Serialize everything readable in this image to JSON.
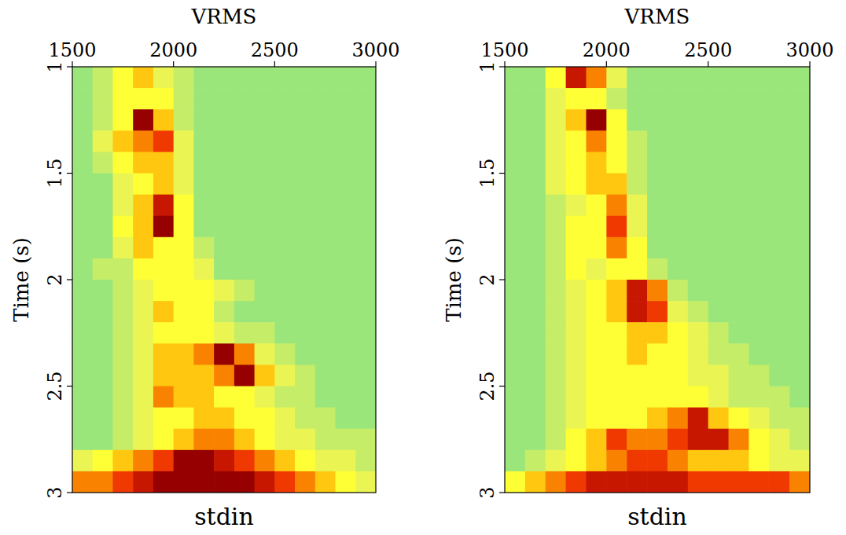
{
  "chart_data": [
    {
      "type": "heatmap",
      "title": "stdin",
      "x_label": "VRMS",
      "y_label": "Time (s)",
      "xlim": [
        1500,
        3000
      ],
      "ylim": [
        1,
        3
      ],
      "xticks": [
        1500,
        2000,
        2500,
        3000
      ],
      "yticks": [
        1,
        1.5,
        2,
        2.5,
        3
      ],
      "zlim": [
        0,
        9
      ],
      "x": [
        1550,
        1650,
        1750,
        1850,
        1950,
        2050,
        2150,
        2250,
        2350,
        2450,
        2550,
        2650,
        2750,
        2850,
        2950
      ],
      "y": [
        1.05,
        1.15,
        1.25,
        1.35,
        1.45,
        1.55,
        1.65,
        1.75,
        1.85,
        1.95,
        2.05,
        2.15,
        2.25,
        2.35,
        2.45,
        2.55,
        2.65,
        2.75,
        2.85,
        2.95
      ],
      "cells": [
        [
          1,
          2,
          4,
          5,
          3,
          2,
          1,
          1,
          1,
          1,
          1,
          1,
          1,
          1,
          1
        ],
        [
          1,
          2,
          4,
          4,
          4,
          2,
          1,
          1,
          1,
          1,
          1,
          1,
          1,
          1,
          1
        ],
        [
          1,
          2,
          4,
          9,
          5,
          2,
          1,
          1,
          1,
          1,
          1,
          1,
          1,
          1,
          1
        ],
        [
          1,
          3,
          5,
          6,
          7,
          3,
          1,
          1,
          1,
          1,
          1,
          1,
          1,
          1,
          1
        ],
        [
          1,
          2,
          4,
          5,
          5,
          3,
          1,
          1,
          1,
          1,
          1,
          1,
          1,
          1,
          1
        ],
        [
          1,
          1,
          3,
          4,
          5,
          3,
          1,
          1,
          1,
          1,
          1,
          1,
          1,
          1,
          1
        ],
        [
          1,
          1,
          3,
          5,
          8,
          4,
          1,
          1,
          1,
          1,
          1,
          1,
          1,
          1,
          1
        ],
        [
          1,
          1,
          4,
          5,
          9,
          4,
          1,
          1,
          1,
          1,
          1,
          1,
          1,
          1,
          1
        ],
        [
          1,
          1,
          3,
          5,
          4,
          4,
          2,
          1,
          1,
          1,
          1,
          1,
          1,
          1,
          1
        ],
        [
          1,
          2,
          2,
          4,
          4,
          4,
          3,
          1,
          1,
          1,
          1,
          1,
          1,
          1,
          1
        ],
        [
          1,
          1,
          2,
          3,
          4,
          4,
          4,
          3,
          2,
          1,
          1,
          1,
          1,
          1,
          1
        ],
        [
          1,
          1,
          2,
          3,
          5,
          4,
          4,
          2,
          1,
          1,
          1,
          1,
          1,
          1,
          1
        ],
        [
          1,
          1,
          2,
          3,
          4,
          4,
          4,
          3,
          2,
          2,
          1,
          1,
          1,
          1,
          1
        ],
        [
          1,
          1,
          2,
          3,
          5,
          5,
          6,
          9,
          6,
          3,
          2,
          1,
          1,
          1,
          1
        ],
        [
          1,
          1,
          2,
          3,
          5,
          5,
          5,
          6,
          9,
          5,
          3,
          2,
          1,
          1,
          1
        ],
        [
          1,
          1,
          2,
          3,
          6,
          5,
          5,
          4,
          4,
          3,
          2,
          2,
          1,
          1,
          1
        ],
        [
          1,
          1,
          2,
          3,
          4,
          4,
          5,
          5,
          4,
          4,
          3,
          2,
          2,
          1,
          1
        ],
        [
          1,
          1,
          2,
          3,
          4,
          5,
          6,
          6,
          5,
          4,
          3,
          3,
          2,
          2,
          2
        ],
        [
          3,
          4,
          5,
          6,
          7,
          9,
          9,
          8,
          7,
          6,
          5,
          4,
          3,
          3,
          2
        ],
        [
          6,
          6,
          7,
          8,
          9,
          9,
          9,
          9,
          9,
          8,
          7,
          6,
          5,
          4,
          3
        ]
      ]
    },
    {
      "type": "heatmap",
      "title": "stdin",
      "x_label": "VRMS",
      "y_label": "Time (s)",
      "xlim": [
        1500,
        3000
      ],
      "ylim": [
        1,
        3
      ],
      "xticks": [
        1500,
        2000,
        2500,
        3000
      ],
      "yticks": [
        1,
        1.5,
        2,
        2.5,
        3
      ],
      "zlim": [
        0,
        9
      ],
      "x": [
        1550,
        1650,
        1750,
        1850,
        1950,
        2050,
        2150,
        2250,
        2350,
        2450,
        2550,
        2650,
        2750,
        2850,
        2950
      ],
      "y": [
        1.05,
        1.15,
        1.25,
        1.35,
        1.45,
        1.55,
        1.65,
        1.75,
        1.85,
        1.95,
        2.05,
        2.15,
        2.25,
        2.35,
        2.45,
        2.55,
        2.65,
        2.75,
        2.85,
        2.95
      ],
      "cells": [
        [
          1,
          1,
          4,
          8,
          6,
          3,
          1,
          1,
          1,
          1,
          1,
          1,
          1,
          1,
          1
        ],
        [
          1,
          1,
          3,
          4,
          4,
          2,
          1,
          1,
          1,
          1,
          1,
          1,
          1,
          1,
          1
        ],
        [
          1,
          1,
          3,
          5,
          9,
          4,
          1,
          1,
          1,
          1,
          1,
          1,
          1,
          1,
          1
        ],
        [
          1,
          1,
          3,
          4,
          6,
          4,
          2,
          1,
          1,
          1,
          1,
          1,
          1,
          1,
          1
        ],
        [
          1,
          1,
          3,
          4,
          5,
          4,
          2,
          1,
          1,
          1,
          1,
          1,
          1,
          1,
          1
        ],
        [
          1,
          1,
          3,
          4,
          5,
          5,
          2,
          1,
          1,
          1,
          1,
          1,
          1,
          1,
          1
        ],
        [
          1,
          1,
          2,
          3,
          4,
          6,
          3,
          1,
          1,
          1,
          1,
          1,
          1,
          1,
          1
        ],
        [
          1,
          1,
          2,
          4,
          4,
          7,
          3,
          1,
          1,
          1,
          1,
          1,
          1,
          1,
          1
        ],
        [
          1,
          1,
          2,
          4,
          4,
          6,
          4,
          1,
          1,
          1,
          1,
          1,
          1,
          1,
          1
        ],
        [
          1,
          1,
          2,
          4,
          3,
          4,
          4,
          2,
          1,
          1,
          1,
          1,
          1,
          1,
          1
        ],
        [
          1,
          1,
          2,
          3,
          4,
          5,
          8,
          6,
          2,
          1,
          1,
          1,
          1,
          1,
          1
        ],
        [
          1,
          1,
          2,
          3,
          4,
          5,
          8,
          7,
          3,
          2,
          1,
          1,
          1,
          1,
          1
        ],
        [
          1,
          1,
          2,
          3,
          4,
          4,
          5,
          5,
          4,
          3,
          2,
          1,
          1,
          1,
          1
        ],
        [
          1,
          1,
          2,
          3,
          4,
          4,
          5,
          4,
          4,
          3,
          2,
          2,
          1,
          1,
          1
        ],
        [
          1,
          1,
          2,
          3,
          4,
          4,
          4,
          4,
          4,
          3,
          3,
          2,
          2,
          1,
          1
        ],
        [
          1,
          1,
          2,
          3,
          4,
          4,
          4,
          4,
          4,
          4,
          3,
          2,
          2,
          2,
          1
        ],
        [
          1,
          1,
          2,
          3,
          4,
          4,
          4,
          5,
          6,
          8,
          5,
          4,
          3,
          2,
          2
        ],
        [
          1,
          1,
          2,
          4,
          5,
          7,
          6,
          6,
          7,
          8,
          8,
          6,
          4,
          3,
          2
        ],
        [
          1,
          2,
          3,
          4,
          5,
          6,
          7,
          7,
          6,
          5,
          5,
          5,
          4,
          3,
          3
        ],
        [
          4,
          5,
          6,
          7,
          8,
          8,
          8,
          8,
          8,
          7,
          7,
          7,
          7,
          7,
          6
        ]
      ]
    }
  ]
}
